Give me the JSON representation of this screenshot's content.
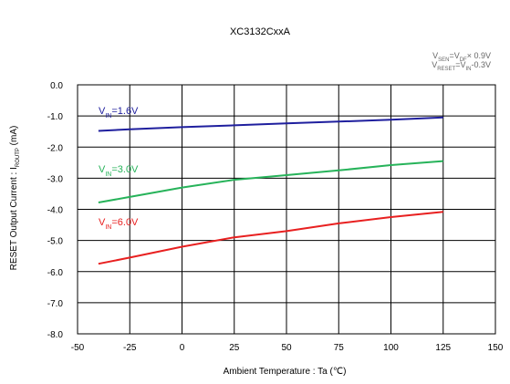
{
  "chart_data": {
    "type": "line",
    "title": "XC3132CxxA",
    "conditions": [
      {
        "main": "V",
        "sub": "SEN",
        "rest1": "=V",
        "sub2": "DF",
        "rest2": "× 0.9V"
      },
      {
        "main": "V",
        "sub": "RESET",
        "rest1": "=V",
        "sub2": "IN",
        "rest2": "-0.3V"
      }
    ],
    "xlabel": "Ambient Temperature : Ta (℃)",
    "ylabel_main": "RESET Output Current : I",
    "ylabel_sub": "ROUTP",
    "ylabel_unit": " (mA)",
    "xlim": [
      -50,
      150
    ],
    "ylim": [
      -8.0,
      0.0
    ],
    "x_ticks": [
      "-50",
      "-25",
      "0",
      "25",
      "50",
      "75",
      "100",
      "125",
      "150"
    ],
    "y_ticks": [
      "0.0",
      "-1.0",
      "-2.0",
      "-3.0",
      "-4.0",
      "-5.0",
      "-6.0",
      "-7.0",
      "-8.0"
    ],
    "grid": true,
    "series": [
      {
        "label_main": "V",
        "label_sub": "IN",
        "label_rest": "=1.6V",
        "color": "#1f1f9e",
        "x": [
          -40,
          -25,
          0,
          25,
          50,
          75,
          100,
          125
        ],
        "y": [
          -1.48,
          -1.43,
          -1.36,
          -1.3,
          -1.24,
          -1.18,
          -1.12,
          -1.05
        ]
      },
      {
        "label_main": "V",
        "label_sub": "IN",
        "label_rest": "=3.0V",
        "color": "#27b35a",
        "x": [
          -40,
          -25,
          0,
          25,
          50,
          75,
          100,
          125
        ],
        "y": [
          -3.78,
          -3.6,
          -3.3,
          -3.05,
          -2.9,
          -2.75,
          -2.58,
          -2.45
        ]
      },
      {
        "label_main": "V",
        "label_sub": "IN",
        "label_rest": "=6.0V",
        "color": "#e82020",
        "x": [
          -40,
          -25,
          0,
          25,
          50,
          75,
          100,
          125
        ],
        "y": [
          -5.75,
          -5.55,
          -5.2,
          -4.9,
          -4.7,
          -4.45,
          -4.25,
          -4.08
        ]
      }
    ]
  }
}
